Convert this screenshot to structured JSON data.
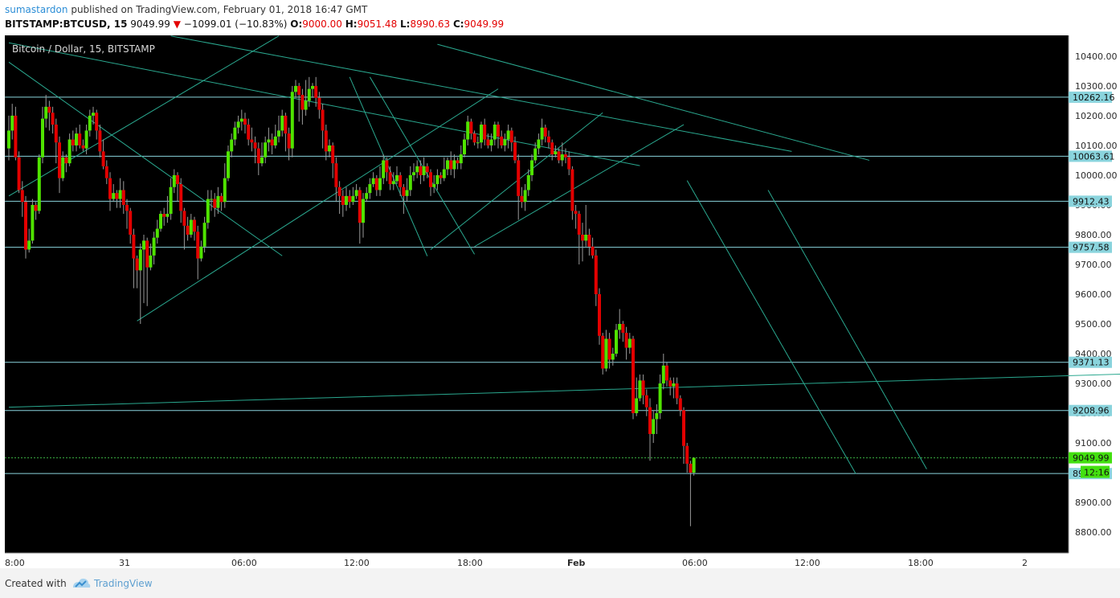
{
  "header": {
    "author": "sumastardon",
    "published_text": "published on TradingView.com, February 01, 2018 16:47 GMT",
    "symbol": "BITSTAMP:BTCUSD, 15",
    "last": "9049.99",
    "change_arrow": "▼",
    "change": "−1099.01 (−10.83%)",
    "o_label": "O:",
    "o_value": "9000.00",
    "h_label": "H:",
    "h_value": "9051.48",
    "l_label": "L:",
    "l_value": "8990.63",
    "c_label": "C:",
    "c_value": "9049.99"
  },
  "chart_data": {
    "type": "candlestick",
    "title": "Bitcoin / Dollar, 15, BITSTAMP",
    "x_tick_labels": [
      "8:00",
      "31",
      "06:00",
      "12:00",
      "18:00",
      "Feb",
      "06:00",
      "12:00",
      "18:00",
      "2"
    ],
    "y_ticks": [
      10400,
      10300,
      10200,
      10100,
      10000,
      9900,
      9800,
      9700,
      9600,
      9500,
      9400,
      9300,
      9200,
      9100,
      9000,
      8900,
      8800
    ],
    "y_tick_labels": [
      "10400.00",
      "10300.00",
      "10200.00",
      "10100.00",
      "10000.00",
      "9900.00",
      "9800.00",
      "9700.00",
      "9600.00",
      "9500.00",
      "9400.00",
      "9300.00",
      "9200.00",
      "9100.00",
      "9000.00",
      "8900.00",
      "8800.00"
    ],
    "ylim": [
      8730,
      10470
    ],
    "horizontal_levels": [
      {
        "value": 10262.16,
        "label": "10262.16"
      },
      {
        "value": 10063.61,
        "label": "10063.61"
      },
      {
        "value": 9912.43,
        "label": "9912.43"
      },
      {
        "value": 9757.58,
        "label": "9757.58"
      },
      {
        "value": 9371.13,
        "label": "9371.13"
      },
      {
        "value": 9208.96,
        "label": "9208.96"
      },
      {
        "value": 8997.0,
        "label": "89"
      }
    ],
    "last_price": {
      "value": 9049.99,
      "label": "9049.99",
      "countdown": "12:16"
    },
    "candles": [
      [
        10090,
        10150,
        10050,
        10200
      ],
      [
        10150,
        10200,
        10120,
        10240
      ],
      [
        10200,
        10060,
        10050,
        10230
      ],
      [
        10060,
        9950,
        9940,
        10080
      ],
      [
        9950,
        9910,
        9860,
        9980
      ],
      [
        9910,
        9750,
        9720,
        9930
      ],
      [
        9750,
        9780,
        9740,
        9820
      ],
      [
        9780,
        9900,
        9770,
        9920
      ],
      [
        9900,
        9880,
        9850,
        9910
      ],
      [
        9880,
        10060,
        9870,
        10070
      ],
      [
        10060,
        10190,
        10040,
        10230
      ],
      [
        10190,
        10230,
        10160,
        10270
      ],
      [
        10230,
        10210,
        10150,
        10250
      ],
      [
        10210,
        10170,
        10140,
        10230
      ],
      [
        10170,
        10110,
        10040,
        10190
      ],
      [
        10110,
        9990,
        9940,
        10130
      ],
      [
        9990,
        10060,
        9980,
        10080
      ],
      [
        10060,
        10040,
        10010,
        10070
      ],
      [
        10040,
        10120,
        10030,
        10140
      ],
      [
        10120,
        10100,
        10080,
        10150
      ],
      [
        10100,
        10140,
        10080,
        10160
      ],
      [
        10140,
        10100,
        10090,
        10170
      ],
      [
        10100,
        10090,
        10080,
        10120
      ],
      [
        10090,
        10150,
        10070,
        10170
      ],
      [
        10150,
        10200,
        10130,
        10220
      ],
      [
        10200,
        10210,
        10170,
        10230
      ],
      [
        10210,
        10150,
        10120,
        10220
      ],
      [
        10150,
        10080,
        10060,
        10170
      ],
      [
        10080,
        10030,
        10020,
        10120
      ],
      [
        10030,
        9990,
        9970,
        10050
      ],
      [
        9990,
        9920,
        9880,
        10010
      ],
      [
        9920,
        9940,
        9910,
        9970
      ],
      [
        9940,
        9920,
        9890,
        9950
      ],
      [
        9920,
        9950,
        9890,
        9990
      ],
      [
        9950,
        9900,
        9870,
        9980
      ],
      [
        9900,
        9880,
        9820,
        9920
      ],
      [
        9880,
        9800,
        9770,
        9890
      ],
      [
        9800,
        9720,
        9620,
        9820
      ],
      [
        9720,
        9680,
        9620,
        9730
      ],
      [
        9680,
        9750,
        9500,
        9770
      ],
      [
        9750,
        9780,
        9570,
        9800
      ],
      [
        9780,
        9690,
        9560,
        9790
      ],
      [
        9690,
        9730,
        9680,
        9770
      ],
      [
        9730,
        9790,
        9700,
        9810
      ],
      [
        9790,
        9820,
        9770,
        9850
      ],
      [
        9820,
        9870,
        9810,
        9880
      ],
      [
        9870,
        9860,
        9830,
        9890
      ],
      [
        9860,
        9870,
        9840,
        9930
      ],
      [
        9870,
        9960,
        9850,
        9990
      ],
      [
        9960,
        10000,
        9940,
        10020
      ],
      [
        10000,
        9970,
        9910,
        10010
      ],
      [
        9970,
        9880,
        9840,
        9990
      ],
      [
        9880,
        9830,
        9750,
        9890
      ],
      [
        9830,
        9800,
        9780,
        9860
      ],
      [
        9800,
        9850,
        9790,
        9870
      ],
      [
        9850,
        9810,
        9780,
        9860
      ],
      [
        9810,
        9720,
        9650,
        9830
      ],
      [
        9720,
        9760,
        9710,
        9780
      ],
      [
        9760,
        9840,
        9740,
        9860
      ],
      [
        9840,
        9920,
        9820,
        9950
      ],
      [
        9920,
        9920,
        9880,
        9950
      ],
      [
        9920,
        9890,
        9860,
        9940
      ],
      [
        9890,
        9930,
        9870,
        9960
      ],
      [
        9930,
        9910,
        9880,
        9940
      ],
      [
        9910,
        9990,
        9890,
        10040
      ],
      [
        9990,
        10080,
        9980,
        10100
      ],
      [
        10080,
        10120,
        10060,
        10140
      ],
      [
        10120,
        10160,
        10100,
        10180
      ],
      [
        10160,
        10180,
        10140,
        10200
      ],
      [
        10180,
        10190,
        10150,
        10220
      ],
      [
        10190,
        10170,
        10140,
        10210
      ],
      [
        10170,
        10120,
        10100,
        10190
      ],
      [
        10120,
        10110,
        10080,
        10160
      ],
      [
        10110,
        10090,
        10040,
        10130
      ],
      [
        10090,
        10040,
        10000,
        10110
      ],
      [
        10040,
        10060,
        10030,
        10110
      ],
      [
        10060,
        10110,
        10040,
        10130
      ],
      [
        10110,
        10120,
        10080,
        10160
      ],
      [
        10120,
        10100,
        10070,
        10140
      ],
      [
        10100,
        10130,
        10090,
        10170
      ],
      [
        10130,
        10150,
        10110,
        10200
      ],
      [
        10150,
        10200,
        10130,
        10220
      ],
      [
        10200,
        10140,
        10080,
        10210
      ],
      [
        10140,
        10090,
        10050,
        10160
      ],
      [
        10090,
        10280,
        10060,
        10300
      ],
      [
        10280,
        10300,
        10260,
        10320
      ],
      [
        10300,
        10270,
        10180,
        10310
      ],
      [
        10270,
        10220,
        10170,
        10290
      ],
      [
        10220,
        10250,
        10200,
        10320
      ],
      [
        10250,
        10290,
        10230,
        10330
      ],
      [
        10290,
        10300,
        10260,
        10310
      ],
      [
        10300,
        10260,
        10230,
        10330
      ],
      [
        10260,
        10220,
        10190,
        10280
      ],
      [
        10220,
        10150,
        10090,
        10240
      ],
      [
        10150,
        10080,
        10050,
        10170
      ],
      [
        10080,
        10100,
        10060,
        10120
      ],
      [
        10100,
        10040,
        9990,
        10110
      ],
      [
        10040,
        9960,
        9910,
        10060
      ],
      [
        9960,
        9930,
        9870,
        9980
      ],
      [
        9930,
        9900,
        9860,
        9950
      ],
      [
        9900,
        9930,
        9880,
        9960
      ],
      [
        9930,
        9910,
        9890,
        9950
      ],
      [
        9910,
        9930,
        9900,
        9960
      ],
      [
        9930,
        9950,
        9920,
        9970
      ],
      [
        9950,
        9840,
        9770,
        9960
      ],
      [
        9840,
        9920,
        9790,
        9940
      ],
      [
        9920,
        9940,
        9910,
        9960
      ],
      [
        9940,
        9970,
        9920,
        9990
      ],
      [
        9970,
        9990,
        9960,
        10010
      ],
      [
        9990,
        9950,
        9930,
        10000
      ],
      [
        9950,
        9990,
        9930,
        10030
      ],
      [
        9990,
        10050,
        9970,
        10070
      ],
      [
        10050,
        10010,
        9980,
        10060
      ],
      [
        10010,
        9970,
        9950,
        10030
      ],
      [
        9970,
        9980,
        9950,
        10010
      ],
      [
        9980,
        10000,
        9970,
        10030
      ],
      [
        10000,
        9960,
        9930,
        10010
      ],
      [
        9960,
        9930,
        9870,
        9970
      ],
      [
        9930,
        9950,
        9910,
        9990
      ],
      [
        9950,
        10000,
        9930,
        10030
      ],
      [
        10000,
        10010,
        9980,
        10040
      ],
      [
        10010,
        10030,
        9990,
        10050
      ],
      [
        10030,
        10000,
        9970,
        10050
      ],
      [
        10000,
        10030,
        9980,
        10060
      ],
      [
        10030,
        10010,
        9990,
        10040
      ],
      [
        10010,
        9960,
        9930,
        10020
      ],
      [
        9960,
        9970,
        9940,
        10000
      ],
      [
        9970,
        10000,
        9950,
        10020
      ],
      [
        10000,
        9990,
        9970,
        10010
      ],
      [
        9990,
        10020,
        9980,
        10060
      ],
      [
        10020,
        10050,
        10000,
        10060
      ],
      [
        10050,
        10020,
        10000,
        10080
      ],
      [
        10020,
        10050,
        9990,
        10070
      ],
      [
        10050,
        10040,
        10020,
        10060
      ],
      [
        10040,
        10070,
        10020,
        10100
      ],
      [
        10070,
        10120,
        10060,
        10140
      ],
      [
        10120,
        10180,
        10100,
        10200
      ],
      [
        10180,
        10140,
        10120,
        10190
      ],
      [
        10140,
        10110,
        10100,
        10150
      ],
      [
        10110,
        10110,
        10090,
        10130
      ],
      [
        10110,
        10170,
        10090,
        10180
      ],
      [
        10170,
        10120,
        10100,
        10190
      ],
      [
        10120,
        10100,
        10090,
        10140
      ],
      [
        10100,
        10120,
        10080,
        10140
      ],
      [
        10120,
        10170,
        10100,
        10180
      ],
      [
        10170,
        10130,
        10090,
        10180
      ],
      [
        10130,
        10100,
        10090,
        10150
      ],
      [
        10100,
        10120,
        10080,
        10140
      ],
      [
        10120,
        10150,
        10090,
        10170
      ],
      [
        10150,
        10110,
        10080,
        10160
      ],
      [
        10110,
        10050,
        10040,
        10130
      ],
      [
        10050,
        9930,
        9850,
        10070
      ],
      [
        9930,
        9910,
        9890,
        9960
      ],
      [
        9910,
        9950,
        9880,
        9970
      ],
      [
        9950,
        10000,
        9930,
        10020
      ],
      [
        10000,
        10050,
        9980,
        10070
      ],
      [
        10050,
        10090,
        10040,
        10110
      ],
      [
        10090,
        10120,
        10070,
        10140
      ],
      [
        10120,
        10160,
        10100,
        10190
      ],
      [
        10160,
        10130,
        10110,
        10170
      ],
      [
        10130,
        10110,
        10090,
        10150
      ],
      [
        10110,
        10070,
        10050,
        10120
      ],
      [
        10070,
        10080,
        10060,
        10100
      ],
      [
        10080,
        10050,
        10040,
        10090
      ],
      [
        10050,
        10070,
        10030,
        10110
      ],
      [
        10070,
        10060,
        10040,
        10090
      ],
      [
        10060,
        10020,
        10000,
        10080
      ],
      [
        10020,
        9880,
        9850,
        10030
      ],
      [
        9880,
        9870,
        9820,
        9900
      ],
      [
        9870,
        9800,
        9700,
        9880
      ],
      [
        9800,
        9780,
        9710,
        9840
      ],
      [
        9780,
        9800,
        9760,
        9900
      ],
      [
        9800,
        9760,
        9730,
        9820
      ],
      [
        9760,
        9730,
        9720,
        9790
      ],
      [
        9730,
        9600,
        9560,
        9750
      ],
      [
        9600,
        9460,
        9430,
        9620
      ],
      [
        9460,
        9350,
        9330,
        9470
      ],
      [
        9350,
        9450,
        9340,
        9480
      ],
      [
        9450,
        9380,
        9350,
        9470
      ],
      [
        9380,
        9400,
        9360,
        9420
      ],
      [
        9400,
        9480,
        9390,
        9500
      ],
      [
        9480,
        9500,
        9450,
        9550
      ],
      [
        9500,
        9470,
        9440,
        9510
      ],
      [
        9470,
        9420,
        9380,
        9490
      ],
      [
        9420,
        9450,
        9400,
        9470
      ],
      [
        9450,
        9200,
        9180,
        9460
      ],
      [
        9200,
        9250,
        9190,
        9320
      ],
      [
        9250,
        9310,
        9240,
        9330
      ],
      [
        9310,
        9260,
        9230,
        9330
      ],
      [
        9260,
        9220,
        9190,
        9280
      ],
      [
        9220,
        9130,
        9040,
        9250
      ],
      [
        9130,
        9180,
        9100,
        9210
      ],
      [
        9180,
        9200,
        9130,
        9230
      ],
      [
        9200,
        9300,
        9180,
        9330
      ],
      [
        9300,
        9360,
        9280,
        9400
      ],
      [
        9360,
        9310,
        9290,
        9370
      ],
      [
        9310,
        9290,
        9260,
        9320
      ],
      [
        9290,
        9300,
        9250,
        9320
      ],
      [
        9300,
        9250,
        9230,
        9320
      ],
      [
        9250,
        9210,
        9190,
        9260
      ],
      [
        9210,
        9090,
        9030,
        9220
      ],
      [
        9090,
        9030,
        9000,
        9100
      ],
      [
        9030,
        9000,
        8820,
        9040
      ],
      [
        9000,
        9050,
        8990,
        9052
      ]
    ],
    "trendlines": [
      {
        "p1": [
          0,
          9930
        ],
        "p2": [
          80,
          10468
        ]
      },
      {
        "p1": [
          38,
          9510
        ],
        "p2": [
          145,
          10290
        ]
      },
      {
        "p1": [
          125,
          9750
        ],
        "p2": [
          176,
          10210
        ]
      },
      {
        "p1": [
          138,
          9760
        ],
        "p2": [
          200,
          10170
        ]
      },
      {
        "p1": [
          0,
          10380
        ],
        "p2": [
          81,
          9729
        ]
      },
      {
        "p1": [
          48,
          10468
        ],
        "p2": [
          232,
          10080
        ]
      },
      {
        "p1": [
          0,
          10445
        ],
        "p2": [
          187,
          10032
        ]
      },
      {
        "p1": [
          127,
          10440
        ],
        "p2": [
          255,
          10050
        ]
      },
      {
        "p1": [
          101,
          10330
        ],
        "p2": [
          124,
          9728
        ]
      },
      {
        "p1": [
          107,
          10330
        ],
        "p2": [
          138,
          9734
        ]
      },
      {
        "p1": [
          201,
          9982
        ],
        "p2": [
          251,
          8996
        ]
      },
      {
        "p1": [
          225,
          9950
        ],
        "p2": [
          272,
          9012
        ]
      },
      {
        "p1": [
          0,
          9220
        ],
        "p2": [
          332,
          9332
        ]
      }
    ]
  },
  "footer": {
    "created_with": "Created with",
    "brand": "TradingView"
  },
  "colors": {
    "background": "#000000",
    "up_candle": "#4fe300",
    "down_candle": "#e30000",
    "wick": "#9a9a9a",
    "level_line": "#8ad4dd",
    "level_label_bg": "#8ad4dd",
    "trendline": "#2aa88f",
    "last_price_line": "#3cb043",
    "last_price_label_bg": "#43e010",
    "axis_text": "#2a2a2a"
  }
}
